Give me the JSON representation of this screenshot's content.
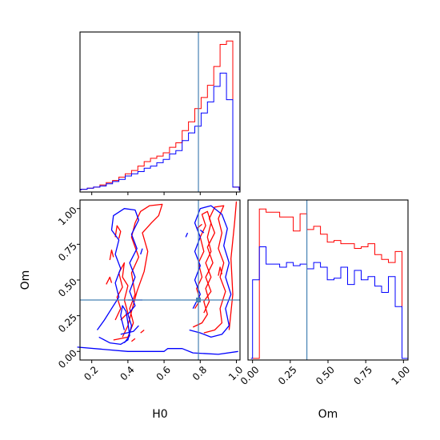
{
  "chart_data": {
    "type": "corner",
    "parameters": [
      "H0",
      "Om"
    ],
    "truths": {
      "H0": 0.79,
      "Om": 0.36
    },
    "truth_color": "#4682b4",
    "series": [
      {
        "color": "#ff0000"
      },
      {
        "color": "#0000ff"
      }
    ],
    "panels": [
      {
        "type": "histogram",
        "param": "H0",
        "xlim": [
          0.135,
          1.02
        ],
        "bin_edges": [
          0.14,
          0.175,
          0.21,
          0.245,
          0.28,
          0.315,
          0.35,
          0.385,
          0.42,
          0.455,
          0.49,
          0.525,
          0.56,
          0.595,
          0.63,
          0.665,
          0.7,
          0.735,
          0.77,
          0.805,
          0.84,
          0.875,
          0.91,
          0.945,
          0.98,
          1.015
        ],
        "series_counts": [
          [
            0.5,
            1.0,
            1.5,
            2.5,
            3.5,
            4.5,
            6.0,
            7.5,
            9.0,
            11.0,
            13.0,
            14.5,
            15.5,
            17.0,
            19.5,
            21.5,
            27.0,
            31.0,
            37.0,
            42.0,
            47.5,
            56.0,
            66.0,
            67.5,
            1.5
          ],
          [
            0.5,
            1.0,
            1.5,
            2.0,
            3.0,
            4.0,
            5.0,
            6.5,
            7.5,
            8.5,
            10.0,
            11.0,
            12.5,
            14.0,
            16.5,
            18.0,
            22.5,
            26.0,
            29.0,
            35.0,
            40.0,
            47.0,
            53.0,
            41.0,
            1.5
          ]
        ],
        "xticks": [],
        "xticks_visible": false
      },
      {
        "type": "histogram",
        "param": "Om",
        "xlim": [
          -0.03,
          1.03
        ],
        "bin_edges": [
          -0.01,
          0.0,
          0.045,
          0.09,
          0.135,
          0.18,
          0.225,
          0.27,
          0.315,
          0.36,
          0.405,
          0.45,
          0.495,
          0.54,
          0.585,
          0.63,
          0.675,
          0.72,
          0.765,
          0.81,
          0.855,
          0.9,
          0.945,
          0.99,
          1.03
        ],
        "series_counts": [
          [
            0,
            0,
            95,
            93,
            93,
            90,
            90,
            81,
            92,
            82,
            84,
            79,
            74,
            75,
            73,
            73,
            70,
            71,
            73,
            66,
            63,
            61,
            68,
            0
          ],
          [
            0,
            50,
            71,
            60,
            60,
            58,
            61,
            59,
            60,
            57,
            61,
            58,
            50,
            51,
            58,
            47,
            56,
            50,
            52,
            46,
            42,
            52,
            33,
            0
          ]
        ],
        "xticks": [
          "0.00",
          "0.25",
          "0.50",
          "0.75",
          "1.00"
        ],
        "xtick_values": [
          0.0,
          0.25,
          0.5,
          0.75,
          1.0
        ],
        "xlabel": "Om"
      },
      {
        "type": "contour",
        "x_param": "H0",
        "y_param": "Om",
        "xlim": [
          0.135,
          1.02
        ],
        "ylim": [
          -0.06,
          1.06
        ],
        "xticks": [
          "0.2",
          "0.4",
          "0.6",
          "0.8",
          "1.0"
        ],
        "xtick_values": [
          0.2,
          0.4,
          0.6,
          0.8,
          1.0
        ],
        "yticks": [
          "0.00",
          "0.25",
          "0.50",
          "0.75",
          "1.00"
        ],
        "ytick_values": [
          0.0,
          0.25,
          0.5,
          0.75,
          1.0
        ],
        "xlabel": "H0",
        "ylabel": "Om",
        "series_contours": [
          [
            [
              [
                0.32,
                0.08
              ],
              [
                0.4,
                0.1
              ],
              [
                0.43,
                0.2
              ],
              [
                0.41,
                0.3
              ],
              [
                0.44,
                0.4
              ],
              [
                0.42,
                0.55
              ],
              [
                0.46,
                0.66
              ],
              [
                0.42,
                0.8
              ],
              [
                0.44,
                0.9
              ],
              [
                0.47,
                0.98
              ],
              [
                0.52,
                1.02
              ],
              [
                0.59,
                1.03
              ],
              [
                0.57,
                0.95
              ],
              [
                0.53,
                0.9
              ],
              [
                0.48,
                0.83
              ],
              [
                0.51,
                0.7
              ],
              [
                0.49,
                0.56
              ],
              [
                0.45,
                0.42
              ],
              [
                0.42,
                0.28
              ],
              [
                0.4,
                0.18
              ],
              [
                0.37,
                0.1
              ]
            ],
            [
              [
                0.33,
                0.22
              ],
              [
                0.36,
                0.3
              ],
              [
                0.34,
                0.38
              ],
              [
                0.37,
                0.45
              ],
              [
                0.35,
                0.55
              ],
              [
                0.38,
                0.62
              ],
              [
                0.37,
                0.52
              ],
              [
                0.4,
                0.46
              ],
              [
                0.38,
                0.36
              ],
              [
                0.4,
                0.27
              ],
              [
                0.36,
                0.22
              ]
            ],
            [
              [
                0.28,
                0.47
              ],
              [
                0.3,
                0.52
              ],
              [
                0.31,
                0.48
              ]
            ],
            [
              [
                0.3,
                0.64
              ],
              [
                0.31,
                0.71
              ],
              [
                0.32,
                0.66
              ]
            ],
            [
              [
                0.33,
                0.8
              ],
              [
                0.34,
                0.88
              ],
              [
                0.36,
                0.84
              ],
              [
                0.35,
                0.79
              ]
            ],
            [
              [
                0.42,
                0.07
              ],
              [
                0.44,
                0.09
              ]
            ],
            [
              [
                0.47,
                0.13
              ],
              [
                0.49,
                0.15
              ]
            ],
            [
              [
                0.76,
                0.17
              ],
              [
                0.81,
                0.2
              ],
              [
                0.84,
                0.26
              ],
              [
                0.82,
                0.35
              ],
              [
                0.86,
                0.42
              ],
              [
                0.83,
                0.52
              ],
              [
                0.87,
                0.62
              ],
              [
                0.84,
                0.73
              ],
              [
                0.88,
                0.83
              ],
              [
                0.85,
                0.93
              ],
              [
                0.88,
                1.01
              ],
              [
                0.93,
                1.02
              ],
              [
                0.9,
                0.93
              ],
              [
                0.92,
                0.83
              ],
              [
                0.9,
                0.72
              ],
              [
                0.93,
                0.62
              ],
              [
                0.91,
                0.52
              ],
              [
                0.94,
                0.42
              ],
              [
                0.91,
                0.3
              ],
              [
                0.92,
                0.2
              ],
              [
                0.88,
                0.15
              ],
              [
                0.82,
                0.13
              ]
            ],
            [
              [
                0.77,
                0.3
              ],
              [
                0.8,
                0.36
              ],
              [
                0.78,
                0.44
              ],
              [
                0.81,
                0.52
              ],
              [
                0.79,
                0.62
              ],
              [
                0.82,
                0.7
              ],
              [
                0.8,
                0.8
              ],
              [
                0.83,
                0.88
              ],
              [
                0.81,
                0.96
              ],
              [
                0.84,
                0.98
              ],
              [
                0.86,
                0.9
              ],
              [
                0.84,
                0.8
              ],
              [
                0.86,
                0.7
              ],
              [
                0.83,
                0.62
              ],
              [
                0.86,
                0.52
              ],
              [
                0.83,
                0.44
              ],
              [
                0.85,
                0.35
              ],
              [
                0.82,
                0.27
              ]
            ],
            [
              [
                0.9,
                0.53
              ],
              [
                0.91,
                0.59
              ],
              [
                0.92,
                0.54
              ]
            ],
            [
              [
                0.78,
                0.86
              ],
              [
                0.81,
                0.89
              ]
            ],
            [
              [
                0.96,
                0.15
              ],
              [
                0.98,
                0.4
              ],
              [
                0.97,
                0.65
              ],
              [
                0.99,
                0.9
              ],
              [
                1.0,
                1.05
              ]
            ]
          ],
          [
            [
              [
                0.24,
                0.1
              ],
              [
                0.3,
                0.06
              ],
              [
                0.36,
                0.05
              ],
              [
                0.4,
                0.08
              ],
              [
                0.42,
                0.18
              ],
              [
                0.4,
                0.26
              ],
              [
                0.44,
                0.32
              ],
              [
                0.41,
                0.42
              ],
              [
                0.44,
                0.52
              ],
              [
                0.41,
                0.62
              ],
              [
                0.45,
                0.72
              ],
              [
                0.42,
                0.82
              ],
              [
                0.46,
                0.92
              ],
              [
                0.44,
                0.99
              ],
              [
                0.38,
                1.0
              ],
              [
                0.32,
                0.95
              ],
              [
                0.31,
                0.85
              ],
              [
                0.35,
                0.78
              ],
              [
                0.33,
                0.68
              ],
              [
                0.36,
                0.58
              ],
              [
                0.33,
                0.48
              ],
              [
                0.35,
                0.38
              ],
              [
                0.31,
                0.3
              ],
              [
                0.27,
                0.22
              ],
              [
                0.23,
                0.15
              ]
            ],
            [
              [
                0.12,
                0.03
              ],
              [
                0.4,
                0.0
              ],
              [
                0.6,
                0.0
              ],
              [
                0.62,
                0.02
              ],
              [
                0.7,
                0.02
              ],
              [
                0.76,
                -0.01
              ],
              [
                0.9,
                -0.02
              ],
              [
                1.01,
                0.0
              ]
            ],
            [
              [
                0.38,
                0.06
              ],
              [
                0.41,
                0.11
              ],
              [
                0.4,
                0.2
              ],
              [
                0.39,
                0.28
              ],
              [
                0.37,
                0.32
              ],
              [
                0.36,
                0.25
              ],
              [
                0.38,
                0.15
              ]
            ],
            [
              [
                0.36,
                0.12
              ],
              [
                0.43,
                0.14
              ],
              [
                0.46,
                0.18
              ]
            ],
            [
              [
                0.4,
                0.36
              ],
              [
                0.48,
                0.36
              ]
            ],
            [
              [
                0.47,
                0.68
              ],
              [
                0.48,
                0.72
              ]
            ],
            [
              [
                0.74,
                0.15
              ],
              [
                0.8,
                0.13
              ],
              [
                0.86,
                0.1
              ],
              [
                0.92,
                0.12
              ],
              [
                0.96,
                0.18
              ],
              [
                0.94,
                0.3
              ],
              [
                0.97,
                0.4
              ],
              [
                0.94,
                0.52
              ],
              [
                0.96,
                0.62
              ],
              [
                0.93,
                0.74
              ],
              [
                0.95,
                0.86
              ],
              [
                0.92,
                0.96
              ],
              [
                0.86,
                1.02
              ],
              [
                0.8,
                1.0
              ],
              [
                0.77,
                0.9
              ],
              [
                0.8,
                0.8
              ],
              [
                0.77,
                0.7
              ],
              [
                0.8,
                0.6
              ],
              [
                0.77,
                0.5
              ],
              [
                0.8,
                0.4
              ],
              [
                0.76,
                0.3
              ]
            ],
            [
              [
                0.72,
                0.8
              ],
              [
                0.73,
                0.83
              ]
            ],
            [
              [
                0.8,
                0.85
              ],
              [
                0.82,
                0.83
              ]
            ],
            [
              [
                0.78,
                0.35
              ],
              [
                0.8,
                0.36
              ],
              [
                0.79,
                0.38
              ]
            ]
          ]
        ]
      }
    ]
  }
}
